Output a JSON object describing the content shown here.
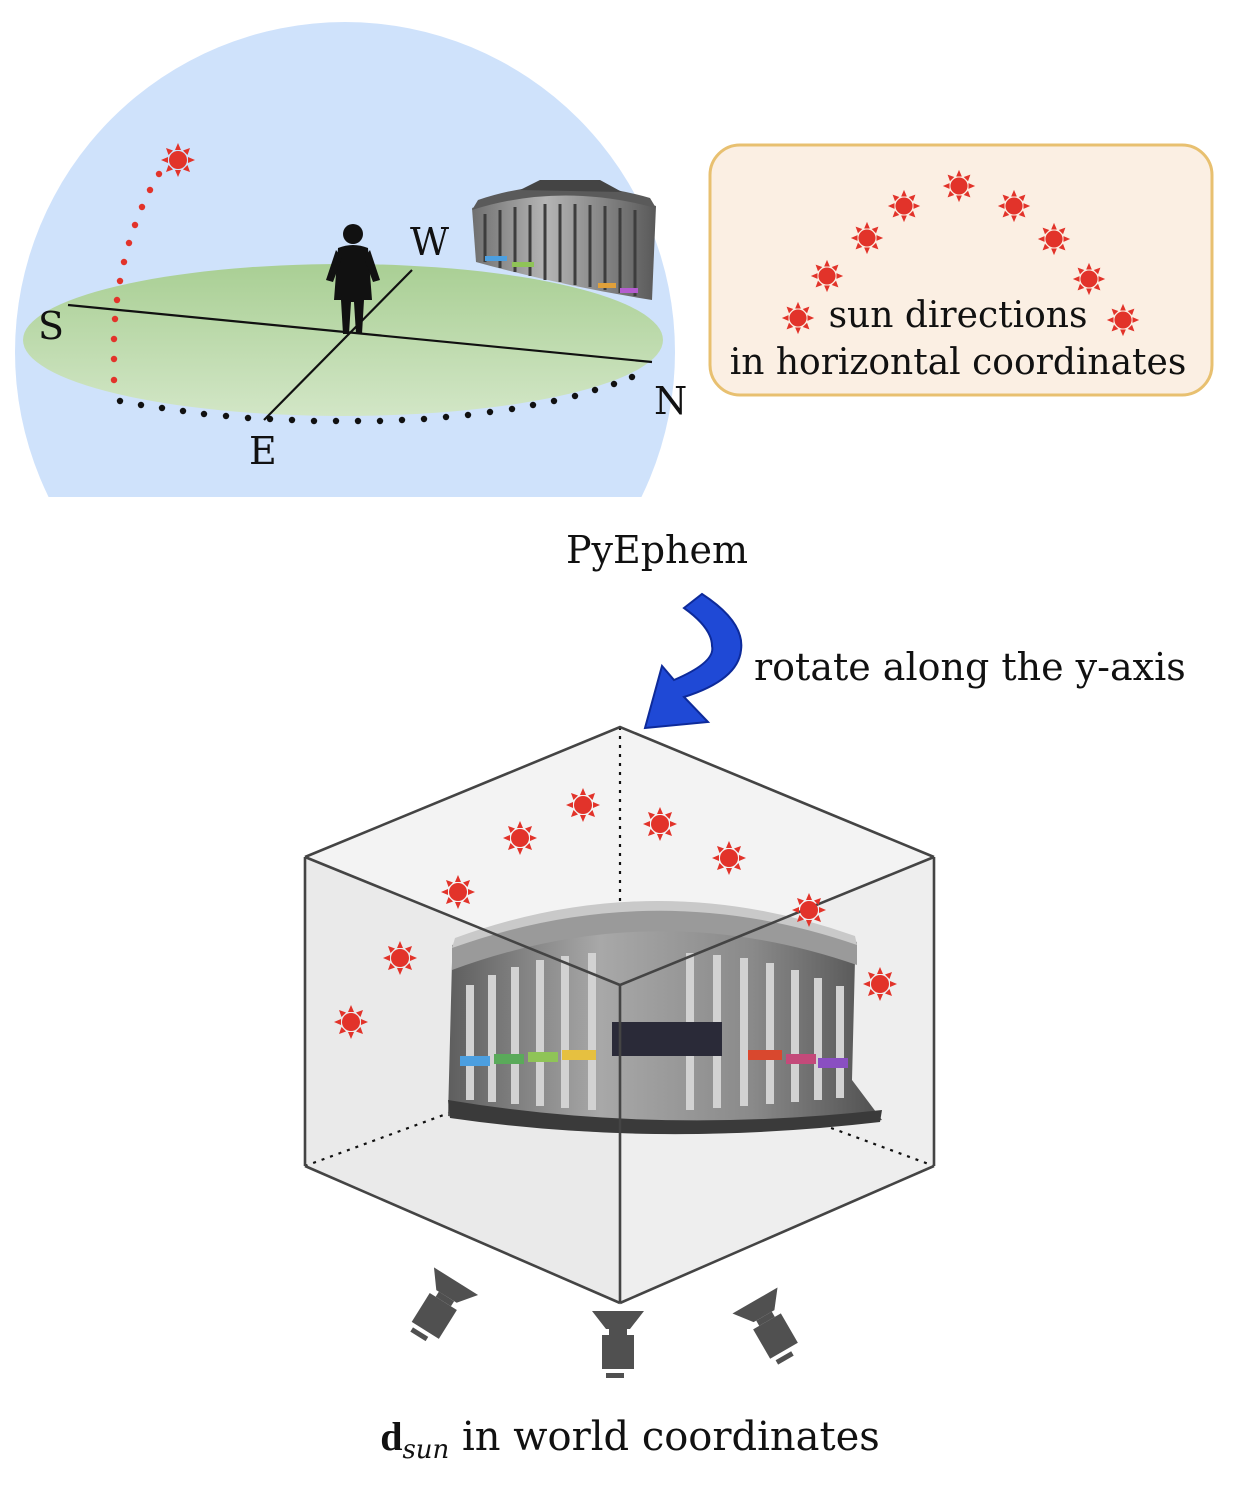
{
  "compass": {
    "south": "S",
    "west": "W",
    "north": "N",
    "east": "E"
  },
  "legend_box": {
    "line1": "sun directions",
    "line2": "in horizontal coordinates"
  },
  "flow": {
    "tool_label": "PyEphem",
    "rotate_label": "rotate along the y-axis"
  },
  "caption": {
    "symbol": "d",
    "subscript": "sun",
    "rest": " in world coordinates"
  },
  "colors": {
    "sky": "#cfe2fb",
    "ground": "#b7d8a4",
    "sun": "#e2332a",
    "legend_fill": "#fbefe3",
    "legend_border": "#e8c070",
    "arrow": "#1f49d6",
    "cube_face": "#efefef",
    "camera": "#505050"
  },
  "icons": [
    "sun-icon",
    "person-icon",
    "building-icon",
    "camera-icon",
    "curved-arrow-icon"
  ]
}
